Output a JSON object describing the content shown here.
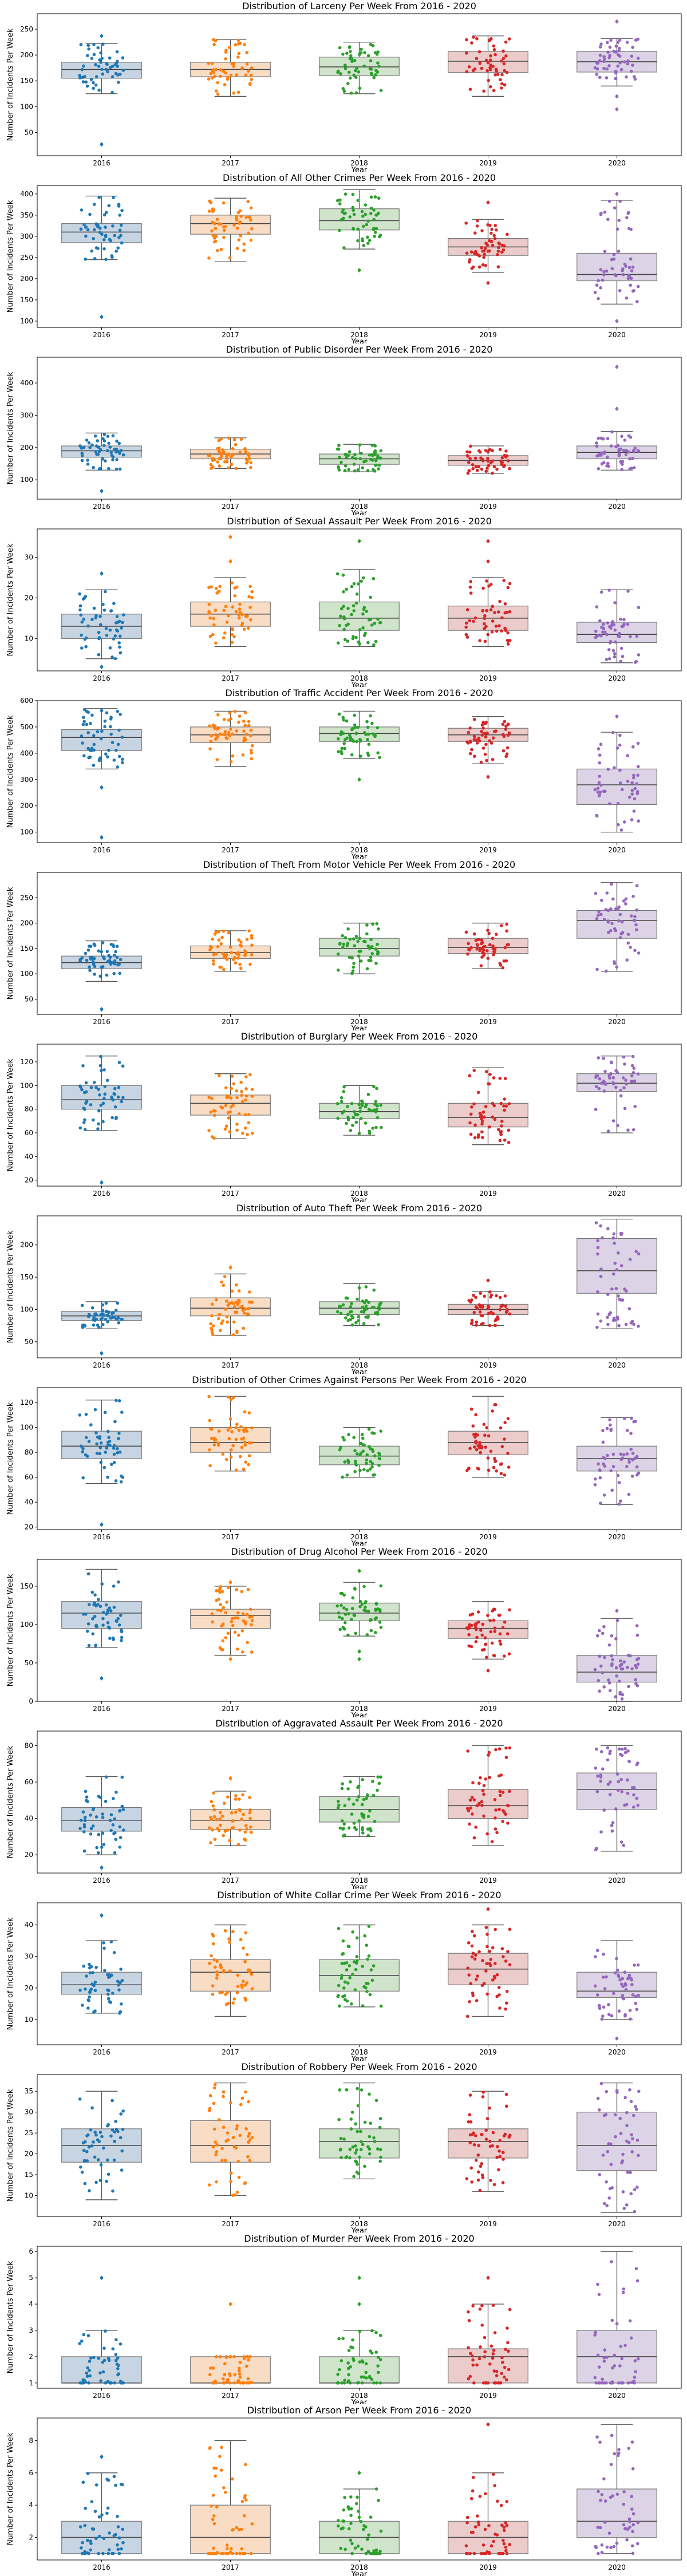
{
  "chart_data": [
    {
      "type": "box",
      "title": "Distribution of Larceny Per Week From 2016 - 2020",
      "xlabel": "Year",
      "ylabel": "Number of Incidents Per Week",
      "categories": [
        "2016",
        "2017",
        "2018",
        "2019",
        "2020"
      ],
      "ylim": [
        5,
        280
      ],
      "yticks": [
        50,
        100,
        150,
        200,
        250
      ],
      "boxes": [
        {
          "min": 125,
          "q1": 155,
          "median": 172,
          "q3": 186,
          "max": 222,
          "outliers": [
            27,
            237
          ]
        },
        {
          "min": 120,
          "q1": 158,
          "median": 172,
          "q3": 186,
          "max": 230,
          "outliers": []
        },
        {
          "min": 125,
          "q1": 160,
          "median": 177,
          "q3": 196,
          "max": 225,
          "outliers": []
        },
        {
          "min": 120,
          "q1": 166,
          "median": 188,
          "q3": 207,
          "max": 237,
          "outliers": []
        },
        {
          "min": 140,
          "q1": 167,
          "median": 187,
          "q3": 207,
          "max": 232,
          "outliers": [
            95,
            120,
            265
          ]
        }
      ]
    },
    {
      "type": "box",
      "title": "Distribution of All Other Crimes Per Week From 2016 - 2020",
      "xlabel": "Year",
      "ylabel": "Number of Incidents Per Week",
      "categories": [
        "2016",
        "2017",
        "2018",
        "2019",
        "2020"
      ],
      "ylim": [
        85,
        420
      ],
      "yticks": [
        100,
        150,
        200,
        250,
        300,
        350,
        400
      ],
      "boxes": [
        {
          "min": 245,
          "q1": 285,
          "median": 310,
          "q3": 330,
          "max": 395,
          "outliers": [
            110
          ]
        },
        {
          "min": 240,
          "q1": 305,
          "median": 330,
          "q3": 350,
          "max": 390,
          "outliers": []
        },
        {
          "min": 270,
          "q1": 315,
          "median": 337,
          "q3": 365,
          "max": 410,
          "outliers": [
            220
          ]
        },
        {
          "min": 215,
          "q1": 255,
          "median": 275,
          "q3": 295,
          "max": 340,
          "outliers": [
            190,
            380
          ]
        },
        {
          "min": 140,
          "q1": 195,
          "median": 210,
          "q3": 260,
          "max": 385,
          "outliers": [
            100,
            400
          ]
        }
      ]
    },
    {
      "type": "box",
      "title": "Distribution of Public Disorder Per Week From 2016 - 2020",
      "xlabel": "Year",
      "ylabel": "Number of Incidents Per Week",
      "categories": [
        "2016",
        "2017",
        "2018",
        "2019",
        "2020"
      ],
      "ylim": [
        40,
        480
      ],
      "yticks": [
        100,
        200,
        300,
        400
      ],
      "boxes": [
        {
          "min": 130,
          "q1": 170,
          "median": 190,
          "q3": 205,
          "max": 245,
          "outliers": [
            65
          ]
        },
        {
          "min": 135,
          "q1": 165,
          "median": 180,
          "q3": 195,
          "max": 230,
          "outliers": []
        },
        {
          "min": 125,
          "q1": 148,
          "median": 165,
          "q3": 180,
          "max": 210,
          "outliers": []
        },
        {
          "min": 120,
          "q1": 145,
          "median": 160,
          "q3": 175,
          "max": 205,
          "outliers": []
        },
        {
          "min": 130,
          "q1": 165,
          "median": 185,
          "q3": 205,
          "max": 250,
          "outliers": [
            320,
            450
          ]
        }
      ]
    },
    {
      "type": "box",
      "title": "Distribution of Sexual Assault Per Week From 2016 - 2020",
      "xlabel": "Year",
      "ylabel": "Number of Incidents Per Week",
      "categories": [
        "2016",
        "2017",
        "2018",
        "2019",
        "2020"
      ],
      "ylim": [
        2,
        37
      ],
      "yticks": [
        10,
        20,
        30
      ],
      "boxes": [
        {
          "min": 5,
          "q1": 10,
          "median": 13,
          "q3": 16,
          "max": 22,
          "outliers": [
            3,
            26
          ]
        },
        {
          "min": 8,
          "q1": 13,
          "median": 16,
          "q3": 19,
          "max": 25,
          "outliers": [
            29,
            35
          ]
        },
        {
          "min": 8,
          "q1": 12,
          "median": 15,
          "q3": 19,
          "max": 27,
          "outliers": [
            34
          ]
        },
        {
          "min": 8,
          "q1": 12,
          "median": 15,
          "q3": 18,
          "max": 25,
          "outliers": [
            29,
            34
          ]
        },
        {
          "min": 4,
          "q1": 9,
          "median": 11,
          "q3": 14,
          "max": 22,
          "outliers": []
        }
      ]
    },
    {
      "type": "box",
      "title": "Distribution of Traffic Accident Per Week From 2016 - 2020",
      "xlabel": "Year",
      "ylabel": "Number of Incidents Per Week",
      "categories": [
        "2016",
        "2017",
        "2018",
        "2019",
        "2020"
      ],
      "ylim": [
        60,
        600
      ],
      "yticks": [
        100,
        200,
        300,
        400,
        500,
        600
      ],
      "boxes": [
        {
          "min": 340,
          "q1": 410,
          "median": 460,
          "q3": 490,
          "max": 570,
          "outliers": [
            80,
            270
          ]
        },
        {
          "min": 350,
          "q1": 440,
          "median": 470,
          "q3": 500,
          "max": 560,
          "outliers": []
        },
        {
          "min": 380,
          "q1": 445,
          "median": 475,
          "q3": 500,
          "max": 560,
          "outliers": [
            300
          ]
        },
        {
          "min": 360,
          "q1": 445,
          "median": 470,
          "q3": 495,
          "max": 540,
          "outliers": [
            310
          ]
        },
        {
          "min": 100,
          "q1": 205,
          "median": 280,
          "q3": 340,
          "max": 480,
          "outliers": [
            540
          ]
        }
      ]
    },
    {
      "type": "box",
      "title": "Distribution of Theft From Motor Vehicle Per Week From 2016 - 2020",
      "xlabel": "Year",
      "ylabel": "Number of Incidents Per Week",
      "categories": [
        "2016",
        "2017",
        "2018",
        "2019",
        "2020"
      ],
      "ylim": [
        20,
        300
      ],
      "yticks": [
        50,
        100,
        150,
        200,
        250
      ],
      "boxes": [
        {
          "min": 85,
          "q1": 110,
          "median": 122,
          "q3": 135,
          "max": 165,
          "outliers": [
            30
          ]
        },
        {
          "min": 105,
          "q1": 130,
          "median": 142,
          "q3": 155,
          "max": 185,
          "outliers": []
        },
        {
          "min": 100,
          "q1": 135,
          "median": 150,
          "q3": 170,
          "max": 200,
          "outliers": []
        },
        {
          "min": 110,
          "q1": 140,
          "median": 152,
          "q3": 170,
          "max": 200,
          "outliers": []
        },
        {
          "min": 105,
          "q1": 170,
          "median": 205,
          "q3": 225,
          "max": 280,
          "outliers": []
        }
      ]
    },
    {
      "type": "box",
      "title": "Distribution of Burglary Per Week From 2016 - 2020",
      "xlabel": "Year",
      "ylabel": "Number of Incidents Per Week",
      "categories": [
        "2016",
        "2017",
        "2018",
        "2019",
        "2020"
      ],
      "ylim": [
        15,
        135
      ],
      "yticks": [
        20,
        40,
        60,
        80,
        100,
        120
      ],
      "boxes": [
        {
          "min": 62,
          "q1": 80,
          "median": 88,
          "q3": 100,
          "max": 125,
          "outliers": [
            18
          ]
        },
        {
          "min": 55,
          "q1": 75,
          "median": 85,
          "q3": 92,
          "max": 110,
          "outliers": []
        },
        {
          "min": 58,
          "q1": 72,
          "median": 78,
          "q3": 85,
          "max": 100,
          "outliers": []
        },
        {
          "min": 50,
          "q1": 65,
          "median": 73,
          "q3": 85,
          "max": 115,
          "outliers": []
        },
        {
          "min": 60,
          "q1": 95,
          "median": 102,
          "q3": 110,
          "max": 125,
          "outliers": []
        }
      ]
    },
    {
      "type": "box",
      "title": "Distribution of Auto Theft Per Week From 2016 - 2020",
      "xlabel": "Year",
      "ylabel": "Number of Incidents Per Week",
      "categories": [
        "2016",
        "2017",
        "2018",
        "2019",
        "2020"
      ],
      "ylim": [
        25,
        245
      ],
      "yticks": [
        50,
        100,
        150,
        200
      ],
      "boxes": [
        {
          "min": 70,
          "q1": 83,
          "median": 90,
          "q3": 97,
          "max": 112,
          "outliers": [
            32
          ]
        },
        {
          "min": 60,
          "q1": 90,
          "median": 102,
          "q3": 118,
          "max": 155,
          "outliers": [
            165
          ]
        },
        {
          "min": 75,
          "q1": 92,
          "median": 102,
          "q3": 112,
          "max": 140,
          "outliers": []
        },
        {
          "min": 75,
          "q1": 92,
          "median": 100,
          "q3": 108,
          "max": 128,
          "outliers": [
            145
          ]
        },
        {
          "min": 70,
          "q1": 125,
          "median": 160,
          "q3": 210,
          "max": 240,
          "outliers": []
        }
      ]
    },
    {
      "type": "box",
      "title": "Distribution of Other Crimes Against Persons Per Week From 2016 - 2020",
      "xlabel": "Year",
      "ylabel": "Number of Incidents Per Week",
      "categories": [
        "2016",
        "2017",
        "2018",
        "2019",
        "2020"
      ],
      "ylim": [
        18,
        132
      ],
      "yticks": [
        20,
        40,
        60,
        80,
        100,
        120
      ],
      "boxes": [
        {
          "min": 55,
          "q1": 75,
          "median": 85,
          "q3": 97,
          "max": 122,
          "outliers": [
            22
          ]
        },
        {
          "min": 65,
          "q1": 80,
          "median": 88,
          "q3": 100,
          "max": 125,
          "outliers": []
        },
        {
          "min": 60,
          "q1": 70,
          "median": 77,
          "q3": 85,
          "max": 100,
          "outliers": []
        },
        {
          "min": 60,
          "q1": 78,
          "median": 88,
          "q3": 97,
          "max": 125,
          "outliers": []
        },
        {
          "min": 38,
          "q1": 65,
          "median": 75,
          "q3": 85,
          "max": 108,
          "outliers": []
        }
      ]
    },
    {
      "type": "box",
      "title": "Distribution of Drug Alcohol Per Week From 2016 - 2020",
      "xlabel": "Year",
      "ylabel": "Number of Incidents Per Week",
      "categories": [
        "2016",
        "2017",
        "2018",
        "2019",
        "2020"
      ],
      "ylim": [
        0,
        185
      ],
      "yticks": [
        0,
        50,
        100,
        150
      ],
      "boxes": [
        {
          "min": 70,
          "q1": 95,
          "median": 115,
          "q3": 130,
          "max": 172,
          "outliers": [
            30
          ]
        },
        {
          "min": 60,
          "q1": 95,
          "median": 112,
          "q3": 120,
          "max": 150,
          "outliers": [
            55,
            155
          ]
        },
        {
          "min": 85,
          "q1": 105,
          "median": 115,
          "q3": 128,
          "max": 155,
          "outliers": [
            55,
            65,
            170
          ]
        },
        {
          "min": 55,
          "q1": 82,
          "median": 95,
          "q3": 105,
          "max": 130,
          "outliers": [
            40
          ]
        },
        {
          "min": 0,
          "q1": 25,
          "median": 38,
          "q3": 60,
          "max": 108,
          "outliers": [
            118
          ]
        }
      ]
    },
    {
      "type": "box",
      "title": "Distribution of Aggravated Assault Per Week From 2016 - 2020",
      "xlabel": "Year",
      "ylabel": "Number of Incidents Per Week",
      "categories": [
        "2016",
        "2017",
        "2018",
        "2019",
        "2020"
      ],
      "ylim": [
        10,
        88
      ],
      "yticks": [
        20,
        40,
        60,
        80
      ],
      "boxes": [
        {
          "min": 20,
          "q1": 33,
          "median": 39,
          "q3": 46,
          "max": 63,
          "outliers": [
            13
          ]
        },
        {
          "min": 25,
          "q1": 34,
          "median": 39,
          "q3": 45,
          "max": 55,
          "outliers": [
            62
          ]
        },
        {
          "min": 30,
          "q1": 38,
          "median": 45,
          "q3": 52,
          "max": 63,
          "outliers": []
        },
        {
          "min": 25,
          "q1": 40,
          "median": 47,
          "q3": 56,
          "max": 80,
          "outliers": []
        },
        {
          "min": 22,
          "q1": 45,
          "median": 56,
          "q3": 65,
          "max": 80,
          "outliers": []
        }
      ]
    },
    {
      "type": "box",
      "title": "Distribution of White Collar Crime Per Week From 2016 - 2020",
      "xlabel": "Year",
      "ylabel": "Number of Incidents Per Week",
      "categories": [
        "2016",
        "2017",
        "2018",
        "2019",
        "2020"
      ],
      "ylim": [
        2,
        47
      ],
      "yticks": [
        10,
        20,
        30,
        40
      ],
      "boxes": [
        {
          "min": 12,
          "q1": 18,
          "median": 21,
          "q3": 25,
          "max": 35,
          "outliers": [
            43
          ]
        },
        {
          "min": 11,
          "q1": 19,
          "median": 25,
          "q3": 29,
          "max": 40,
          "outliers": []
        },
        {
          "min": 14,
          "q1": 19,
          "median": 24,
          "q3": 29,
          "max": 40,
          "outliers": []
        },
        {
          "min": 11,
          "q1": 21,
          "median": 26,
          "q3": 31,
          "max": 40,
          "outliers": [
            45
          ]
        },
        {
          "min": 10,
          "q1": 17,
          "median": 19,
          "q3": 25,
          "max": 35,
          "outliers": [
            4
          ]
        }
      ]
    },
    {
      "type": "box",
      "title": "Distribution of Robbery Per Week From 2016 - 2020",
      "xlabel": "Year",
      "ylabel": "Number of Incidents Per Week",
      "categories": [
        "2016",
        "2017",
        "2018",
        "2019",
        "2020"
      ],
      "ylim": [
        5,
        39
      ],
      "yticks": [
        10,
        15,
        20,
        25,
        30,
        35
      ],
      "boxes": [
        {
          "min": 9,
          "q1": 18,
          "median": 22,
          "q3": 26,
          "max": 35,
          "outliers": []
        },
        {
          "min": 10,
          "q1": 18,
          "median": 22,
          "q3": 28,
          "max": 37,
          "outliers": []
        },
        {
          "min": 14,
          "q1": 19,
          "median": 23,
          "q3": 26,
          "max": 37,
          "outliers": []
        },
        {
          "min": 11,
          "q1": 19,
          "median": 23,
          "q3": 26,
          "max": 35,
          "outliers": []
        },
        {
          "min": 6,
          "q1": 16,
          "median": 22,
          "q3": 30,
          "max": 37,
          "outliers": []
        }
      ]
    },
    {
      "type": "box",
      "title": "Distribution of Murder Per Week From 2016 - 2020",
      "xlabel": "Year",
      "ylabel": "Number of Incidents Per Week",
      "categories": [
        "2016",
        "2017",
        "2018",
        "2019",
        "2020"
      ],
      "ylim": [
        0.8,
        6.2
      ],
      "yticks": [
        1,
        2,
        3,
        4,
        5,
        6
      ],
      "boxes": [
        {
          "min": 1,
          "q1": 1,
          "median": 1,
          "q3": 2,
          "max": 3,
          "outliers": [
            5
          ]
        },
        {
          "min": 1,
          "q1": 1,
          "median": 1,
          "q3": 2,
          "max": 2,
          "outliers": [
            4
          ]
        },
        {
          "min": 1,
          "q1": 1,
          "median": 1,
          "q3": 2,
          "max": 3,
          "outliers": [
            4,
            5
          ]
        },
        {
          "min": 1,
          "q1": 1,
          "median": 2,
          "q3": 2.3,
          "max": 4,
          "outliers": [
            5
          ]
        },
        {
          "min": 1,
          "q1": 1,
          "median": 2,
          "q3": 3,
          "max": 6,
          "outliers": []
        }
      ]
    },
    {
      "type": "box",
      "title": "Distribution of Arson Per Week From 2016 - 2020",
      "xlabel": "Year",
      "ylabel": "Number of Incidents Per Week",
      "categories": [
        "2016",
        "2017",
        "2018",
        "2019",
        "2020"
      ],
      "ylim": [
        0.6,
        9.4
      ],
      "yticks": [
        2,
        4,
        6,
        8
      ],
      "boxes": [
        {
          "min": 1,
          "q1": 1,
          "median": 2,
          "q3": 3,
          "max": 6,
          "outliers": [
            7
          ]
        },
        {
          "min": 1,
          "q1": 1,
          "median": 2,
          "q3": 4,
          "max": 8,
          "outliers": []
        },
        {
          "min": 1,
          "q1": 1,
          "median": 2,
          "q3": 3,
          "max": 5,
          "outliers": [
            6
          ]
        },
        {
          "min": 1,
          "q1": 1,
          "median": 2,
          "q3": 3,
          "max": 6,
          "outliers": [
            9
          ]
        },
        {
          "min": 1,
          "q1": 2,
          "median": 3,
          "q3": 5,
          "max": 9,
          "outliers": []
        }
      ]
    }
  ],
  "colors": {
    "series": [
      "#1f77b4",
      "#ff7f0e",
      "#2ca02c",
      "#d62728",
      "#9467bd"
    ],
    "boxes": [
      "#c7d5e3",
      "#f8dcc4",
      "#cfe4cb",
      "#eccbcb",
      "#dcd3e6"
    ]
  }
}
